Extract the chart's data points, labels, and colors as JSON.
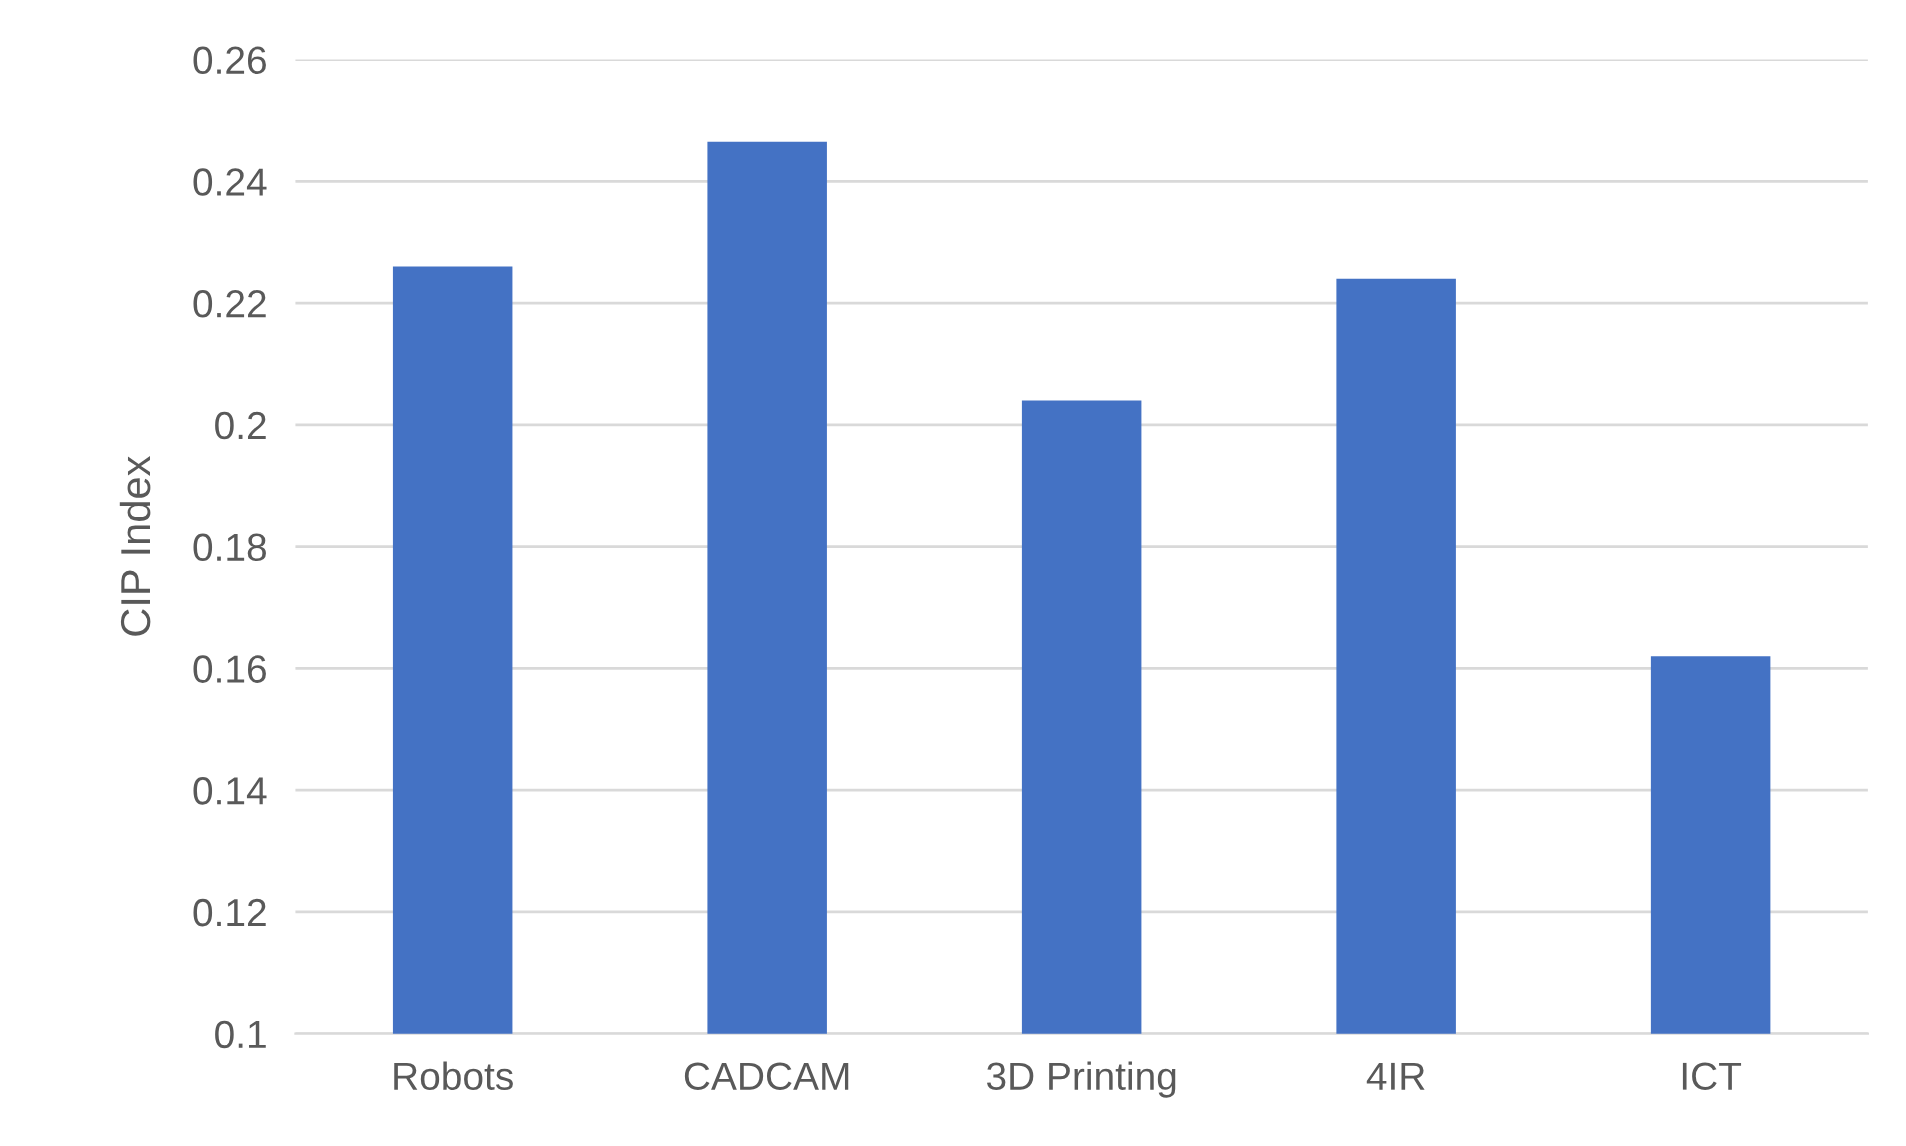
{
  "chart_data": {
    "type": "bar",
    "ylabel": "CIP Index",
    "categories": [
      "Robots",
      "CADCAM",
      "3D Printing",
      "4IR",
      "ICT"
    ],
    "values": [
      0.226,
      0.2465,
      0.204,
      0.224,
      0.162
    ],
    "color": "#4472c4",
    "ylim": [
      0.1,
      0.26
    ],
    "yticks": [
      {
        "value": 0.1,
        "label": "0.1"
      },
      0.12,
      0.14,
      0.16,
      0.18,
      {
        "value": 0.2,
        "label": "0.2"
      },
      0.22,
      0.24,
      0.26
    ],
    "grid": "y"
  }
}
